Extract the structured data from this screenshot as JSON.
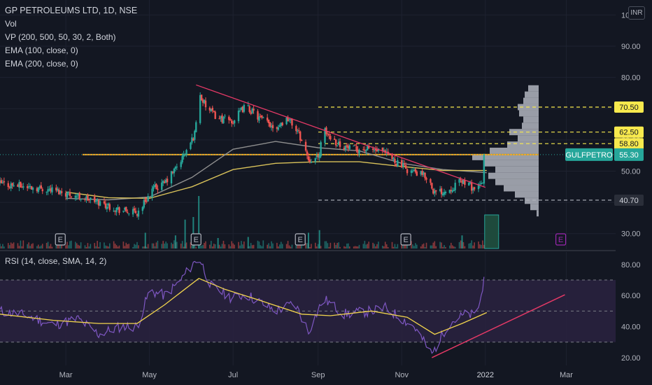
{
  "header": {
    "symbol_line": "GP PETROLEUMS LTD, 1D, NSE",
    "indicators": [
      "Vol",
      "VP (200, 500, 50, 30, 2, Both)",
      "EMA (100, close, 0)",
      "EMA (200, close, 0)"
    ],
    "currency": "INR"
  },
  "rsi_panel": {
    "label": "RSI (14, close, SMA, 14, 2)"
  },
  "colors": {
    "background": "#131722",
    "up": "#26a69a",
    "down": "#ef5350",
    "ema100": "#8f8f8f",
    "ema200": "#d9c25a",
    "trendline": "#e53966",
    "level_line": "#f7e94d",
    "poc_line": "#f5a623",
    "rsi_line": "#7e57c2",
    "rsi_sma": "#f1d44d",
    "rsi_band": "#2a2240",
    "profile": "#b2b5be",
    "earnings": "#b2b5be",
    "earnings_next": "#9c27b0",
    "price_label": "#26a69a"
  },
  "chart_data": [
    {
      "type": "candlestick",
      "title": "GP PETROLEUMS LTD, 1D, NSE",
      "ylim": [
        25,
        103
      ],
      "price_axis_ticks": [
        30,
        40,
        50,
        60,
        70,
        80,
        90,
        100
      ],
      "price_axis_tick_labels": [
        "30.00",
        "40.00",
        "50.00",
        "60.00",
        "70.00",
        "80.00",
        "90.00",
        "100.00"
      ],
      "x_tick_labels": [
        "Mar",
        "May",
        "Jul",
        "Sep",
        "Nov",
        "2022",
        "Mar"
      ],
      "x_tick_dates": [
        "2021-03-01",
        "2021-05-01",
        "2021-07-01",
        "2021-09-01",
        "2021-11-01",
        "2022-01-01",
        "2022-03-01"
      ],
      "date_range": [
        "2021-01-12",
        "2022-04-06"
      ],
      "close_path": [
        [
          "2021-01-12",
          46
        ],
        [
          "2021-02-01",
          45
        ],
        [
          "2021-02-20",
          44
        ],
        [
          "2021-03-10",
          42
        ],
        [
          "2021-03-25",
          40
        ],
        [
          "2021-04-10",
          37.5
        ],
        [
          "2021-04-22",
          36.5
        ],
        [
          "2021-05-03",
          44
        ],
        [
          "2021-05-12",
          46
        ],
        [
          "2021-05-22",
          52
        ],
        [
          "2021-05-30",
          58
        ],
        [
          "2021-06-03",
          62
        ],
        [
          "2021-06-06",
          75
        ],
        [
          "2021-06-12",
          70
        ],
        [
          "2021-06-20",
          67
        ],
        [
          "2021-07-01",
          66
        ],
        [
          "2021-07-10",
          71
        ],
        [
          "2021-07-20",
          67
        ],
        [
          "2021-08-01",
          64
        ],
        [
          "2021-08-10",
          67
        ],
        [
          "2021-08-18",
          62
        ],
        [
          "2021-08-25",
          54
        ],
        [
          "2021-09-01",
          54
        ],
        [
          "2021-09-05",
          63
        ],
        [
          "2021-09-15",
          59
        ],
        [
          "2021-09-25",
          57
        ],
        [
          "2021-10-10",
          57
        ],
        [
          "2021-10-20",
          55.5
        ],
        [
          "2021-11-05",
          50.5
        ],
        [
          "2021-11-20",
          48
        ],
        [
          "2021-11-25",
          43
        ],
        [
          "2021-12-05",
          44
        ],
        [
          "2021-12-15",
          47
        ],
        [
          "2021-12-25",
          44
        ],
        [
          "2021-12-30",
          46
        ],
        [
          "2022-01-02",
          55.3
        ]
      ],
      "last_price": 55.3,
      "last_price_label": "55.30",
      "last_price_symbol": "GULFPETRO",
      "levels": [
        {
          "value": 70.5,
          "label": "70.50",
          "style": "dashed-yellow"
        },
        {
          "value": 62.5,
          "label": "62.50",
          "style": "dashed-yellow"
        },
        {
          "value": 58.8,
          "label": "58.80",
          "style": "dashed-yellow"
        },
        {
          "value": 40.7,
          "label": "40.70",
          "style": "dashed-gray"
        }
      ],
      "poc_level": 55.3,
      "ema100": [
        [
          "2021-03-01",
          41.3
        ],
        [
          "2021-04-01",
          40.8
        ],
        [
          "2021-05-01",
          41.7
        ],
        [
          "2021-06-01",
          48
        ],
        [
          "2021-07-01",
          57
        ],
        [
          "2021-08-01",
          59.5
        ],
        [
          "2021-09-01",
          57.5
        ],
        [
          "2021-10-01",
          56.5
        ],
        [
          "2021-11-01",
          52.5
        ],
        [
          "2021-12-01",
          50.5
        ],
        [
          "2022-01-02",
          49.5
        ]
      ],
      "ema200": [
        [
          "2021-03-01",
          43.3
        ],
        [
          "2021-04-01",
          41.5
        ],
        [
          "2021-05-01",
          41.3
        ],
        [
          "2021-06-01",
          45
        ],
        [
          "2021-07-01",
          50.5
        ],
        [
          "2021-08-01",
          52.5
        ],
        [
          "2021-09-01",
          53
        ],
        [
          "2021-10-01",
          53
        ],
        [
          "2021-11-01",
          51.5
        ],
        [
          "2021-12-01",
          50.2
        ],
        [
          "2022-01-02",
          50.2
        ]
      ],
      "trendlines": [
        {
          "from": [
            "2021-06-04",
            77.6
          ],
          "to": [
            "2022-01-01",
            44.8
          ]
        }
      ],
      "volume_profile_bins": [
        [
          36.5,
          0.03
        ],
        [
          38.5,
          0.12
        ],
        [
          40.5,
          0.2
        ],
        [
          42.5,
          0.34
        ],
        [
          44.5,
          0.5
        ],
        [
          46.5,
          0.62
        ],
        [
          48.5,
          0.72
        ],
        [
          50.5,
          0.62
        ],
        [
          52.5,
          0.78
        ],
        [
          54.5,
          0.95
        ],
        [
          56.5,
          0.7
        ],
        [
          58.5,
          0.45
        ],
        [
          60.5,
          0.3
        ],
        [
          62.5,
          0.42
        ],
        [
          64.5,
          0.24
        ],
        [
          66.5,
          0.22
        ],
        [
          68.5,
          0.28
        ],
        [
          70.5,
          0.3
        ],
        [
          72.5,
          0.22
        ],
        [
          74.5,
          0.2
        ],
        [
          76.5,
          0.15
        ]
      ],
      "earnings_markers": [
        {
          "date": "2021-02-25",
          "label": "E"
        },
        {
          "date": "2021-06-04",
          "label": "E"
        },
        {
          "date": "2021-08-19",
          "label": "E"
        },
        {
          "date": "2021-11-04",
          "label": "E"
        },
        {
          "date": "2022-02-25",
          "label": "E",
          "upcoming": true
        }
      ],
      "volume_spikes": [
        [
          "2021-04-28",
          0.3
        ],
        [
          "2021-05-20",
          0.25
        ],
        [
          "2021-05-27",
          0.55
        ],
        [
          "2021-06-02",
          0.6
        ],
        [
          "2021-06-06",
          1.0
        ],
        [
          "2021-06-20",
          0.2
        ],
        [
          "2021-07-12",
          0.22
        ],
        [
          "2021-08-25",
          0.3
        ],
        [
          "2021-09-02",
          0.35
        ],
        [
          "2021-12-15",
          0.25
        ],
        [
          "2022-01-02",
          1.0
        ]
      ]
    },
    {
      "type": "line",
      "title": "RSI (14, close, SMA, 14, 2)",
      "ylim": [
        15,
        88
      ],
      "y_ticks": [
        20,
        40,
        60,
        80
      ],
      "y_tick_labels": [
        "20.00",
        "40.00",
        "60.00",
        "80.00"
      ],
      "bands": {
        "upper": 70,
        "middle": 50,
        "lower": 30
      },
      "series": [
        {
          "values": [
            [
              "2021-01-12",
              50
            ],
            [
              "2021-02-01",
              47
            ],
            [
              "2021-02-20",
              41
            ],
            [
              "2021-03-10",
              45
            ],
            [
              "2021-03-25",
              35
            ],
            [
              "2021-04-10",
              40
            ],
            [
              "2021-04-22",
              40
            ],
            [
              "2021-05-01",
              63
            ],
            [
              "2021-05-12",
              60
            ],
            [
              "2021-05-22",
              68
            ],
            [
              "2021-06-06",
              85
            ],
            [
              "2021-06-15",
              66
            ],
            [
              "2021-07-01",
              58
            ],
            [
              "2021-07-10",
              61
            ],
            [
              "2021-08-01",
              50
            ],
            [
              "2021-08-15",
              55
            ],
            [
              "2021-08-25",
              37
            ],
            [
              "2021-09-05",
              58
            ],
            [
              "2021-09-20",
              48
            ],
            [
              "2021-10-10",
              50
            ],
            [
              "2021-10-20",
              52
            ],
            [
              "2021-11-10",
              40
            ],
            [
              "2021-11-23",
              22
            ],
            [
              "2021-12-05",
              42
            ],
            [
              "2021-12-18",
              48
            ],
            [
              "2021-12-25",
              47
            ],
            [
              "2022-01-02",
              72
            ]
          ]
        },
        {
          "values": [
            [
              "2021-01-12",
              48
            ],
            [
              "2021-02-20",
              44
            ],
            [
              "2021-03-25",
              42
            ],
            [
              "2021-04-22",
              42
            ],
            [
              "2021-05-12",
              54
            ],
            [
              "2021-06-06",
              71
            ],
            [
              "2021-06-25",
              64
            ],
            [
              "2021-07-20",
              57
            ],
            [
              "2021-08-20",
              48
            ],
            [
              "2021-09-10",
              47
            ],
            [
              "2021-10-10",
              50
            ],
            [
              "2021-11-05",
              46
            ],
            [
              "2021-11-25",
              35
            ],
            [
              "2021-12-15",
              42
            ],
            [
              "2022-01-02",
              49
            ]
          ]
        }
      ],
      "trendlines": [
        {
          "from": [
            "2021-11-23",
            20
          ],
          "to": [
            "2022-02-28",
            60.5
          ]
        }
      ]
    }
  ]
}
